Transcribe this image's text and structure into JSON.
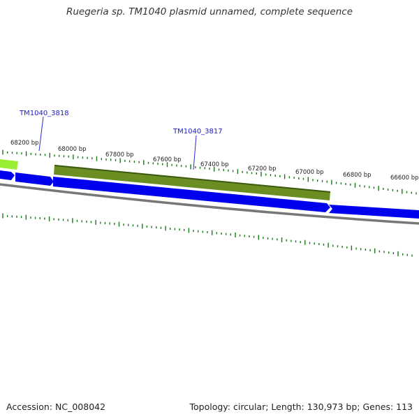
{
  "title": "Ruegeria sp. TM1040 plasmid unnamed, complete sequence",
  "footer": {
    "accession": "Accession: NC_008042",
    "summary": "Topology: circular; Length: 130,973 bp; Genes: 113"
  },
  "colors": {
    "cds_blue": "#0000ee",
    "gene_olive": "#6b8e23",
    "gene_lime": "#99ee33",
    "tick_green": "#1a7a1a",
    "backbone_gray": "#7a7a7a",
    "label_blue": "#1a1acc"
  },
  "position_labels": [
    "68200 bp",
    "68000 bp",
    "67800 bp",
    "67600 bp",
    "67400 bp",
    "67200 bp",
    "67000 bp",
    "66800 bp",
    "66600 bp"
  ],
  "genes": [
    {
      "label": "TM1040_3818"
    },
    {
      "label": "TM1040_3817"
    }
  ]
}
